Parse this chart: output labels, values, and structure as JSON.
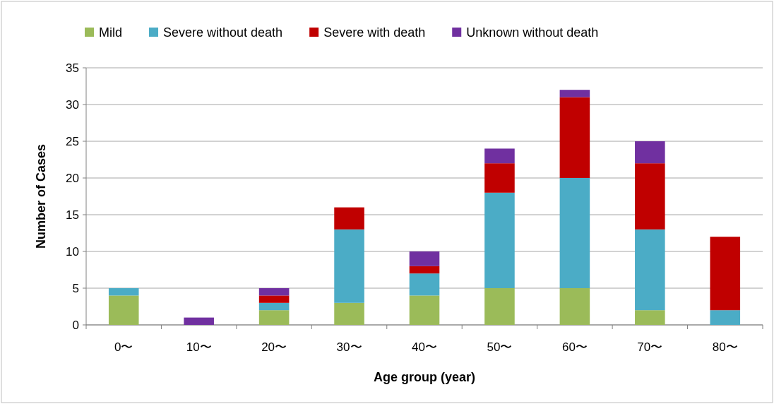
{
  "chart_data": {
    "type": "bar",
    "stacked": true,
    "xlabel": "Age group (year)",
    "ylabel": "Number of Cases",
    "categories": [
      "0〜",
      "10〜",
      "20〜",
      "30〜",
      "40〜",
      "50〜",
      "60〜",
      "70〜",
      "80〜"
    ],
    "series": [
      {
        "name": "Mild",
        "color": "#9bbb59",
        "values": [
          4,
          0,
          2,
          3,
          4,
          5,
          5,
          2,
          0
        ]
      },
      {
        "name": "Severe without death",
        "color": "#4bacc6",
        "values": [
          1,
          0,
          1,
          10,
          3,
          13,
          15,
          11,
          2
        ]
      },
      {
        "name": "Severe with death",
        "color": "#c00000",
        "values": [
          0,
          0,
          1,
          3,
          1,
          4,
          11,
          9,
          10
        ]
      },
      {
        "name": "Unknown without death",
        "color": "#7030a0",
        "values": [
          0,
          1,
          1,
          0,
          2,
          2,
          1,
          3,
          0
        ]
      }
    ],
    "ylim": [
      0,
      35
    ],
    "yticks": [
      0,
      5,
      10,
      15,
      20,
      25,
      30,
      35
    ],
    "grid": "y",
    "legend": "top"
  }
}
